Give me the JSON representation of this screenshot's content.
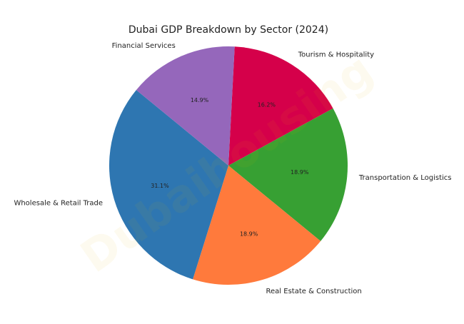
{
  "chart_data": {
    "type": "pie",
    "title": "Dubai GDP Breakdown by Sector (2024)",
    "watermark": "Dubaihousing",
    "categories": [
      "Tourism & Hospitality",
      "Transportation & Logistics",
      "Real Estate & Construction",
      "Wholesale & Retail Trade",
      "Financial Services"
    ],
    "values": [
      16.2,
      18.9,
      18.9,
      31.1,
      14.9
    ],
    "value_labels": [
      "16.2%",
      "18.9%",
      "18.9%",
      "31.1%",
      "14.9%"
    ],
    "colors": [
      "#d5004a",
      "#37a033",
      "#ff7a3c",
      "#2e76b1",
      "#9567bb"
    ],
    "start_angle": 87,
    "clockwise": true
  }
}
